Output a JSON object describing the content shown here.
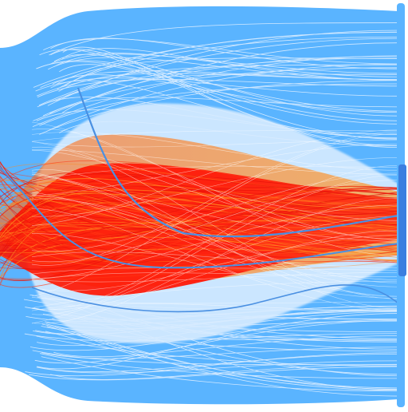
{
  "figure": {
    "kind": "flow-bundle",
    "colors": {
      "background": "#ffffff",
      "blue_band": "#5ab4ff",
      "blue_band_light": "#cfe7ff",
      "blue_line": "#4a90e2",
      "red_core": "#ff1a0a",
      "red_mid": "#ff3a14",
      "orange_edge": "#ff8a1f",
      "right_bar": "#3b7fe0"
    }
  }
}
